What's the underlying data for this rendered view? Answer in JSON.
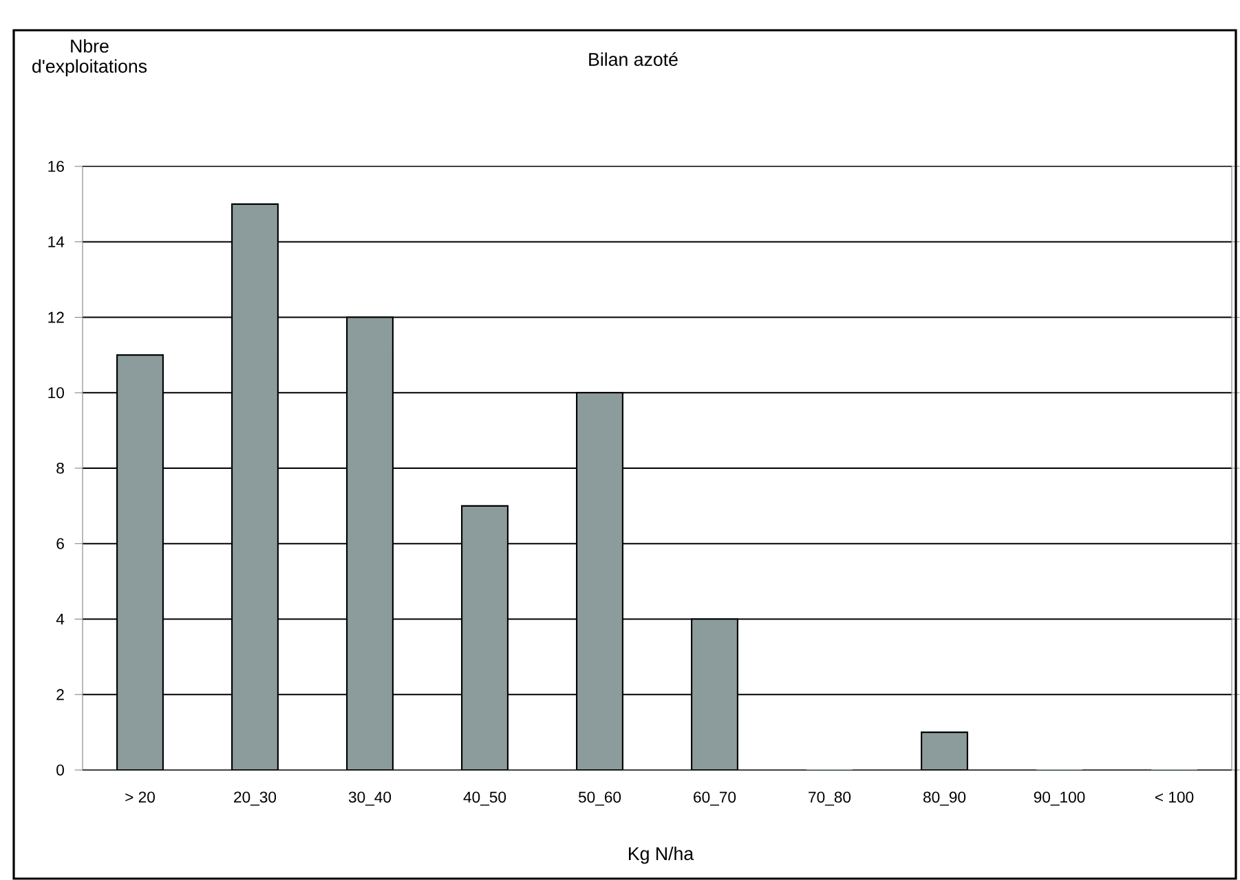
{
  "chart_data": {
    "type": "bar",
    "title": "Bilan azoté",
    "xlabel": "Kg N/ha",
    "ylabel": "Nbre d'exploitations",
    "categories": [
      "> 20",
      "20_30",
      "30_40",
      "40_50",
      "50_60",
      "60_70",
      "70_80",
      "80_90",
      "90_100",
      "< 100"
    ],
    "values": [
      11,
      15,
      12,
      7,
      10,
      4,
      0,
      1,
      0,
      0
    ],
    "color": "#8c9c9c",
    "ylim": [
      0,
      16
    ],
    "yticks": [
      0,
      2,
      4,
      6,
      8,
      10,
      12,
      14,
      16
    ],
    "grid": "y"
  }
}
